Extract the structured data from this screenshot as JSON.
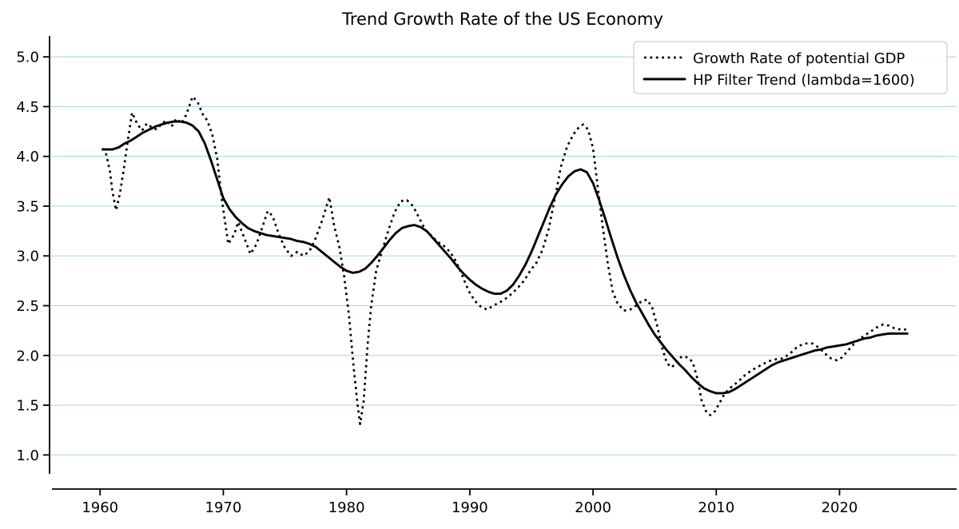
{
  "chart_data": {
    "type": "line",
    "title": "Trend Growth Rate of the US Economy",
    "xlabel": "",
    "ylabel": "",
    "xlim": [
      1955.9,
      2029.5
    ],
    "ylim": [
      0.81,
      5.21
    ],
    "grid": "horizontal",
    "grid_color": "#add8e6",
    "background_color": "#ffffff",
    "axis_color": "#000000",
    "legend_position": "upper right",
    "xticks": [
      {
        "v": 1960,
        "label": "1960"
      },
      {
        "v": 1970,
        "label": "1970"
      },
      {
        "v": 1980,
        "label": "1980"
      },
      {
        "v": 1990,
        "label": "1990"
      },
      {
        "v": 2000,
        "label": "2000"
      },
      {
        "v": 2010,
        "label": "2010"
      },
      {
        "v": 2020,
        "label": "2020"
      }
    ],
    "yticks": [
      {
        "v": 1.0,
        "label": "1.0"
      },
      {
        "v": 1.5,
        "label": "1.5"
      },
      {
        "v": 2.0,
        "label": "2.0"
      },
      {
        "v": 2.5,
        "label": "2.5"
      },
      {
        "v": 3.0,
        "label": "3.0"
      },
      {
        "v": 3.5,
        "label": "3.5"
      },
      {
        "v": 4.0,
        "label": "4.0"
      },
      {
        "v": 4.5,
        "label": "4.5"
      },
      {
        "v": 5.0,
        "label": "5.0"
      }
    ],
    "series": [
      {
        "name": "Growth Rate of potential GDP",
        "style": "dotted",
        "color": "#000000",
        "points": [
          [
            1960.2,
            4.08
          ],
          [
            1960.5,
            4.02
          ],
          [
            1960.8,
            3.85
          ],
          [
            1961.0,
            3.65
          ],
          [
            1961.3,
            3.46
          ],
          [
            1961.6,
            3.62
          ],
          [
            1961.9,
            3.85
          ],
          [
            1962.2,
            4.12
          ],
          [
            1962.6,
            4.44
          ],
          [
            1963.0,
            4.33
          ],
          [
            1963.4,
            4.26
          ],
          [
            1963.8,
            4.33
          ],
          [
            1964.2,
            4.29
          ],
          [
            1964.6,
            4.27
          ],
          [
            1965.0,
            4.33
          ],
          [
            1965.4,
            4.36
          ],
          [
            1965.8,
            4.3
          ],
          [
            1966.2,
            4.38
          ],
          [
            1966.6,
            4.33
          ],
          [
            1967.0,
            4.42
          ],
          [
            1967.5,
            4.6
          ],
          [
            1967.9,
            4.55
          ],
          [
            1968.3,
            4.43
          ],
          [
            1968.7,
            4.36
          ],
          [
            1969.1,
            4.22
          ],
          [
            1969.5,
            3.98
          ],
          [
            1969.9,
            3.55
          ],
          [
            1970.4,
            3.12
          ],
          [
            1970.9,
            3.22
          ],
          [
            1971.2,
            3.34
          ],
          [
            1971.7,
            3.18
          ],
          [
            1972.2,
            3.02
          ],
          [
            1972.7,
            3.12
          ],
          [
            1973.2,
            3.3
          ],
          [
            1973.6,
            3.45
          ],
          [
            1974.0,
            3.4
          ],
          [
            1974.5,
            3.22
          ],
          [
            1975.0,
            3.08
          ],
          [
            1975.5,
            3.0
          ],
          [
            1976.0,
            3.04
          ],
          [
            1976.5,
            3.0
          ],
          [
            1977.0,
            3.05
          ],
          [
            1977.5,
            3.18
          ],
          [
            1978.0,
            3.35
          ],
          [
            1978.6,
            3.59
          ],
          [
            1979.0,
            3.3
          ],
          [
            1979.4,
            3.1
          ],
          [
            1979.8,
            2.8
          ],
          [
            1980.2,
            2.4
          ],
          [
            1980.6,
            1.85
          ],
          [
            1980.9,
            1.5
          ],
          [
            1981.1,
            1.31
          ],
          [
            1981.4,
            1.55
          ],
          [
            1981.7,
            2.1
          ],
          [
            1982.0,
            2.5
          ],
          [
            1982.4,
            2.85
          ],
          [
            1982.9,
            3.06
          ],
          [
            1983.4,
            3.26
          ],
          [
            1983.9,
            3.44
          ],
          [
            1984.4,
            3.55
          ],
          [
            1984.9,
            3.56
          ],
          [
            1985.4,
            3.5
          ],
          [
            1985.9,
            3.38
          ],
          [
            1986.4,
            3.26
          ],
          [
            1986.9,
            3.2
          ],
          [
            1987.4,
            3.14
          ],
          [
            1987.9,
            3.1
          ],
          [
            1988.4,
            3.04
          ],
          [
            1988.9,
            2.94
          ],
          [
            1989.4,
            2.8
          ],
          [
            1989.9,
            2.65
          ],
          [
            1990.4,
            2.55
          ],
          [
            1990.9,
            2.49
          ],
          [
            1991.4,
            2.46
          ],
          [
            1991.9,
            2.5
          ],
          [
            1992.4,
            2.53
          ],
          [
            1992.9,
            2.57
          ],
          [
            1993.4,
            2.62
          ],
          [
            1993.9,
            2.68
          ],
          [
            1994.4,
            2.75
          ],
          [
            1994.9,
            2.85
          ],
          [
            1995.4,
            2.93
          ],
          [
            1995.9,
            3.06
          ],
          [
            1996.4,
            3.27
          ],
          [
            1996.9,
            3.58
          ],
          [
            1997.4,
            3.9
          ],
          [
            1997.9,
            4.1
          ],
          [
            1998.4,
            4.22
          ],
          [
            1998.9,
            4.3
          ],
          [
            1999.2,
            4.32
          ],
          [
            1999.6,
            4.27
          ],
          [
            2000.0,
            4.08
          ],
          [
            2000.4,
            3.68
          ],
          [
            2000.8,
            3.28
          ],
          [
            2001.2,
            2.92
          ],
          [
            2001.6,
            2.64
          ],
          [
            2002.0,
            2.52
          ],
          [
            2002.5,
            2.45
          ],
          [
            2003.0,
            2.46
          ],
          [
            2003.5,
            2.5
          ],
          [
            2004.0,
            2.55
          ],
          [
            2004.4,
            2.56
          ],
          [
            2004.8,
            2.48
          ],
          [
            2005.2,
            2.3
          ],
          [
            2005.6,
            2.08
          ],
          [
            2006.0,
            1.92
          ],
          [
            2006.4,
            1.88
          ],
          [
            2006.8,
            1.94
          ],
          [
            2007.2,
            1.99
          ],
          [
            2007.7,
            1.98
          ],
          [
            2008.1,
            1.93
          ],
          [
            2008.5,
            1.75
          ],
          [
            2008.8,
            1.55
          ],
          [
            2009.2,
            1.43
          ],
          [
            2009.5,
            1.4
          ],
          [
            2009.9,
            1.44
          ],
          [
            2010.3,
            1.53
          ],
          [
            2010.7,
            1.62
          ],
          [
            2011.2,
            1.68
          ],
          [
            2011.8,
            1.74
          ],
          [
            2012.4,
            1.81
          ],
          [
            2013.0,
            1.86
          ],
          [
            2013.6,
            1.9
          ],
          [
            2014.2,
            1.94
          ],
          [
            2014.8,
            1.96
          ],
          [
            2015.4,
            1.97
          ],
          [
            2016.0,
            2.02
          ],
          [
            2016.6,
            2.09
          ],
          [
            2017.2,
            2.12
          ],
          [
            2017.8,
            2.12
          ],
          [
            2018.3,
            2.08
          ],
          [
            2018.8,
            2.02
          ],
          [
            2019.3,
            1.97
          ],
          [
            2019.8,
            1.95
          ],
          [
            2020.2,
            1.98
          ],
          [
            2020.7,
            2.05
          ],
          [
            2021.2,
            2.12
          ],
          [
            2021.8,
            2.18
          ],
          [
            2022.4,
            2.23
          ],
          [
            2023.0,
            2.28
          ],
          [
            2023.5,
            2.31
          ],
          [
            2024.0,
            2.3
          ],
          [
            2024.5,
            2.27
          ],
          [
            2025.0,
            2.26
          ],
          [
            2025.4,
            2.26
          ]
        ]
      },
      {
        "name": "HP Filter Trend (lambda=1600)",
        "style": "solid",
        "color": "#000000",
        "points": [
          [
            1960.2,
            4.07
          ],
          [
            1961.0,
            4.07
          ],
          [
            1961.5,
            4.09
          ],
          [
            1962.0,
            4.13
          ],
          [
            1962.5,
            4.16
          ],
          [
            1963.0,
            4.2
          ],
          [
            1963.5,
            4.24
          ],
          [
            1964.0,
            4.27
          ],
          [
            1964.5,
            4.3
          ],
          [
            1965.0,
            4.32
          ],
          [
            1965.5,
            4.34
          ],
          [
            1966.0,
            4.35
          ],
          [
            1966.5,
            4.35
          ],
          [
            1967.0,
            4.34
          ],
          [
            1967.5,
            4.31
          ],
          [
            1968.0,
            4.25
          ],
          [
            1968.5,
            4.13
          ],
          [
            1969.0,
            3.96
          ],
          [
            1969.5,
            3.77
          ],
          [
            1970.0,
            3.58
          ],
          [
            1970.5,
            3.47
          ],
          [
            1971.0,
            3.39
          ],
          [
            1971.5,
            3.33
          ],
          [
            1972.0,
            3.28
          ],
          [
            1972.5,
            3.25
          ],
          [
            1973.0,
            3.23
          ],
          [
            1973.5,
            3.21
          ],
          [
            1974.0,
            3.2
          ],
          [
            1974.5,
            3.19
          ],
          [
            1975.0,
            3.18
          ],
          [
            1975.5,
            3.17
          ],
          [
            1976.0,
            3.15
          ],
          [
            1976.5,
            3.14
          ],
          [
            1977.0,
            3.12
          ],
          [
            1977.5,
            3.09
          ],
          [
            1978.0,
            3.04
          ],
          [
            1978.5,
            2.99
          ],
          [
            1979.0,
            2.94
          ],
          [
            1979.5,
            2.89
          ],
          [
            1980.0,
            2.85
          ],
          [
            1980.5,
            2.83
          ],
          [
            1981.0,
            2.84
          ],
          [
            1981.5,
            2.87
          ],
          [
            1982.0,
            2.93
          ],
          [
            1982.5,
            3.0
          ],
          [
            1983.0,
            3.08
          ],
          [
            1983.5,
            3.16
          ],
          [
            1984.0,
            3.23
          ],
          [
            1984.5,
            3.28
          ],
          [
            1985.0,
            3.3
          ],
          [
            1985.5,
            3.31
          ],
          [
            1986.0,
            3.29
          ],
          [
            1986.5,
            3.25
          ],
          [
            1987.0,
            3.18
          ],
          [
            1987.5,
            3.11
          ],
          [
            1988.0,
            3.04
          ],
          [
            1988.5,
            2.97
          ],
          [
            1989.0,
            2.89
          ],
          [
            1989.5,
            2.82
          ],
          [
            1990.0,
            2.76
          ],
          [
            1990.5,
            2.71
          ],
          [
            1991.0,
            2.67
          ],
          [
            1991.5,
            2.64
          ],
          [
            1992.0,
            2.62
          ],
          [
            1992.5,
            2.62
          ],
          [
            1993.0,
            2.65
          ],
          [
            1993.5,
            2.71
          ],
          [
            1994.0,
            2.8
          ],
          [
            1994.5,
            2.91
          ],
          [
            1995.0,
            3.04
          ],
          [
            1995.5,
            3.19
          ],
          [
            1996.0,
            3.34
          ],
          [
            1996.5,
            3.49
          ],
          [
            1997.0,
            3.62
          ],
          [
            1997.5,
            3.72
          ],
          [
            1998.0,
            3.8
          ],
          [
            1998.5,
            3.85
          ],
          [
            1999.0,
            3.87
          ],
          [
            1999.5,
            3.84
          ],
          [
            2000.0,
            3.73
          ],
          [
            2000.5,
            3.56
          ],
          [
            2001.0,
            3.37
          ],
          [
            2001.5,
            3.17
          ],
          [
            2002.0,
            2.98
          ],
          [
            2002.5,
            2.81
          ],
          [
            2003.0,
            2.66
          ],
          [
            2003.5,
            2.53
          ],
          [
            2004.0,
            2.42
          ],
          [
            2004.5,
            2.31
          ],
          [
            2005.0,
            2.21
          ],
          [
            2005.5,
            2.13
          ],
          [
            2006.0,
            2.05
          ],
          [
            2006.5,
            1.98
          ],
          [
            2007.0,
            1.91
          ],
          [
            2007.5,
            1.85
          ],
          [
            2008.0,
            1.78
          ],
          [
            2008.5,
            1.72
          ],
          [
            2009.0,
            1.67
          ],
          [
            2009.5,
            1.64
          ],
          [
            2010.0,
            1.62
          ],
          [
            2010.5,
            1.62
          ],
          [
            2011.0,
            1.63
          ],
          [
            2011.5,
            1.66
          ],
          [
            2012.0,
            1.7
          ],
          [
            2012.5,
            1.74
          ],
          [
            2013.0,
            1.78
          ],
          [
            2013.5,
            1.82
          ],
          [
            2014.0,
            1.86
          ],
          [
            2014.5,
            1.9
          ],
          [
            2015.0,
            1.93
          ],
          [
            2015.5,
            1.95
          ],
          [
            2016.0,
            1.97
          ],
          [
            2016.5,
            1.99
          ],
          [
            2017.0,
            2.01
          ],
          [
            2017.5,
            2.03
          ],
          [
            2018.0,
            2.05
          ],
          [
            2018.5,
            2.06
          ],
          [
            2019.0,
            2.08
          ],
          [
            2019.5,
            2.09
          ],
          [
            2020.0,
            2.1
          ],
          [
            2020.5,
            2.11
          ],
          [
            2021.0,
            2.13
          ],
          [
            2021.5,
            2.15
          ],
          [
            2022.0,
            2.17
          ],
          [
            2022.5,
            2.18
          ],
          [
            2023.0,
            2.2
          ],
          [
            2023.5,
            2.21
          ],
          [
            2024.0,
            2.22
          ],
          [
            2024.5,
            2.22
          ],
          [
            2025.0,
            2.22
          ],
          [
            2025.5,
            2.22
          ]
        ]
      }
    ]
  }
}
